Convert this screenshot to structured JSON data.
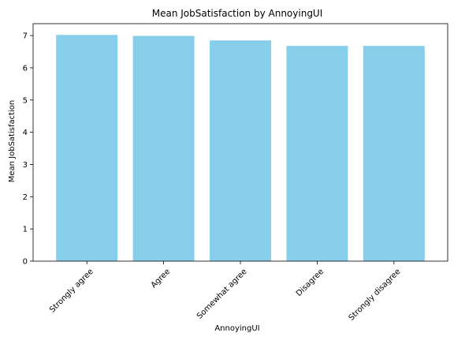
{
  "chart_data": {
    "type": "bar",
    "title": "Mean JobSatisfaction by AnnoyingUI",
    "xlabel": "AnnoyingUI",
    "ylabel": "Mean JobSatisfaction",
    "categories": [
      "Strongly agree",
      "Agree",
      "Somewhat agree",
      "Disagree",
      "Strongly disagree"
    ],
    "values": [
      7.02,
      6.99,
      6.85,
      6.68,
      6.68
    ],
    "ylim": [
      0,
      7.37
    ],
    "yticks": [
      0,
      1,
      2,
      3,
      4,
      5,
      6,
      7
    ],
    "grid": false,
    "bar_color": "#87CEEB",
    "axis_color": "#000000"
  }
}
